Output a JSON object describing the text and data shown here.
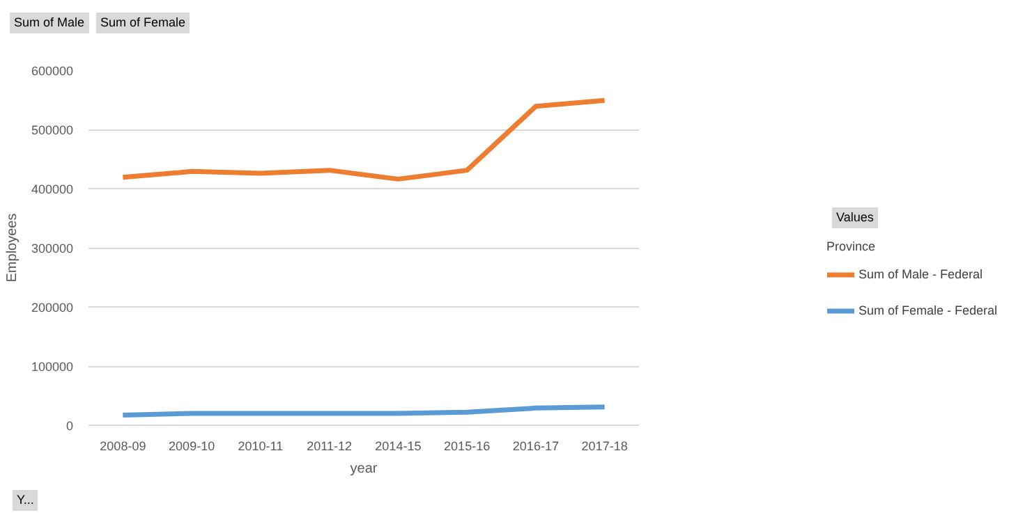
{
  "chart_data": {
    "type": "line",
    "categories": [
      "2008-09",
      "2009-10",
      "2010-11",
      "2011-12",
      "2014-15",
      "2015-16",
      "2016-17",
      "2017-18"
    ],
    "series": [
      {
        "name": "Sum of Male - Federal",
        "color": "#ed7d31",
        "values": [
          419000,
          429000,
          426000,
          431000,
          416000,
          431000,
          539000,
          549000
        ]
      },
      {
        "name": "Sum of Female - Federal",
        "color": "#5b9bd5",
        "values": [
          17000,
          20000,
          20000,
          20000,
          20000,
          22000,
          29000,
          31000
        ]
      }
    ],
    "xlabel": "year",
    "ylabel": "Employees",
    "ylim": [
      0,
      600000
    ],
    "yticks": [
      0,
      100000,
      200000,
      300000,
      400000,
      500000,
      600000
    ],
    "grid": "y",
    "legend": "right",
    "legend_title": "Province",
    "annotations": [
      "Sum of Male",
      "Sum of Female",
      "Values",
      "Y..."
    ]
  }
}
